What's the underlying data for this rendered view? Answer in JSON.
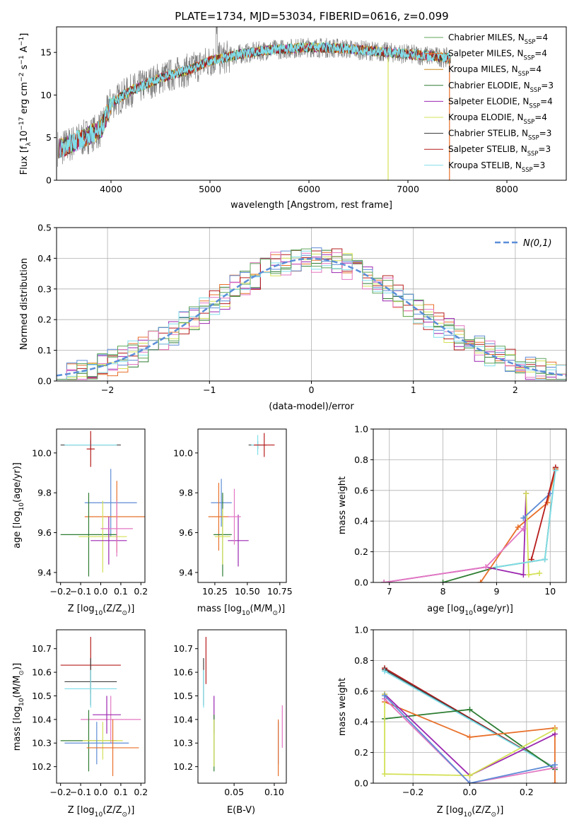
{
  "chart_data": [
    {
      "type": "line",
      "title": "PLATE=1734, MJD=53034, FIBERID=0616, z=0.099",
      "xlabel": "wavelength [Angstrom, rest frame]",
      "ylabel": "Flux [f_λ 10^-17 erg cm^-2 s^-1 A^-1]",
      "xlim": [
        3450,
        8600
      ],
      "ylim": [
        0,
        18
      ],
      "xticks": [
        4000,
        5000,
        6000,
        7000,
        8000
      ],
      "yticks": [
        0,
        5,
        10,
        15
      ],
      "continuum": {
        "x": [
          3500,
          3700,
          3900,
          4000,
          4200,
          4500,
          4800,
          5000,
          5300,
          5600,
          6000,
          6300,
          6600,
          7000,
          7300,
          7430
        ],
        "y": [
          3.8,
          4.8,
          6.0,
          9.0,
          10.5,
          12.0,
          13.0,
          14.0,
          14.8,
          15.3,
          15.6,
          15.5,
          15.2,
          14.8,
          14.5,
          14.3
        ]
      },
      "series": [
        {
          "name": "Chabrier MILES, N_SSP=4",
          "color": "#5fa55a"
        },
        {
          "name": "Salpeter MILES, N_SSP=4",
          "color": "#e8702a"
        },
        {
          "name": "Kroupa MILES, N_SSP=4",
          "color": "#c98a1a"
        },
        {
          "name": "Chabrier ELODIE, N_SSP=3",
          "color": "#2e7d32"
        },
        {
          "name": "Salpeter ELODIE, N_SSP=4",
          "color": "#9c27b0"
        },
        {
          "name": "Kroupa ELODIE, N_SSP=4",
          "color": "#d4e157"
        },
        {
          "name": "Chabrier STELIB, N_SSP=3",
          "color": "#333333"
        },
        {
          "name": "Salpeter STELIB, N_SSP=3",
          "color": "#b71c1c"
        },
        {
          "name": "Kroupa STELIB, N_SSP=3",
          "color": "#80deea"
        }
      ],
      "observed_color": "#808080"
    },
    {
      "type": "line",
      "xlabel": "(data-model)/error",
      "ylabel": "Normed distribution",
      "xlim": [
        -2.5,
        2.5
      ],
      "ylim": [
        0,
        0.5
      ],
      "xticks": [
        -2,
        -1,
        0,
        1,
        2
      ],
      "yticks": [
        0.0,
        0.1,
        0.2,
        0.3,
        0.4,
        0.5
      ],
      "grid": true,
      "legend": {
        "label": "N(0,1)",
        "placement": "top-right"
      },
      "hist_colors": [
        "#2e7d32",
        "#e8702a",
        "#9c27b0",
        "#d4e157",
        "#b71c1c",
        "#5e8cd6",
        "#e377c2",
        "#80deea",
        "#5fa55a"
      ],
      "gauss_color": "#5b8ed8"
    },
    {
      "type": "scatter",
      "xlabel": "Z [log10(Z/Z⊙)]",
      "ylabel": "age  [log10(age/yr)]",
      "xlim": [
        -0.22,
        0.22
      ],
      "ylim": [
        9.35,
        10.12
      ],
      "xticks": [
        -0.2,
        -0.1,
        0.0,
        0.1,
        0.2
      ],
      "yticks": [
        9.4,
        9.6,
        9.8,
        10.0
      ],
      "points": [
        {
          "x": -0.05,
          "xerr": 0.15,
          "y": 10.04,
          "yerr": 0.02,
          "color": "#444444"
        },
        {
          "x": -0.05,
          "xerr": 0.13,
          "y": 10.04,
          "yerr": 0.03,
          "color": "#80deea"
        },
        {
          "x": -0.05,
          "xerr": 0.02,
          "y": 10.02,
          "yerr": 0.09,
          "color": "#b71c1c"
        },
        {
          "x": 0.05,
          "xerr": 0.13,
          "y": 9.75,
          "yerr": 0.17,
          "color": "#5e8cd6"
        },
        {
          "x": 0.08,
          "xerr": 0.16,
          "y": 9.68,
          "yerr": 0.18,
          "color": "#e8702a"
        },
        {
          "x": -0.06,
          "xerr": 0.14,
          "y": 9.59,
          "yerr": 0.21,
          "color": "#2e7d32"
        },
        {
          "x": 0.01,
          "xerr": 0.12,
          "y": 9.58,
          "yerr": 0.18,
          "color": "#d4e157"
        },
        {
          "x": 0.04,
          "xerr": 0.09,
          "y": 9.56,
          "yerr": 0.12,
          "color": "#9c27b0"
        },
        {
          "x": 0.08,
          "xerr": 0.08,
          "y": 9.62,
          "yerr": 0.14,
          "color": "#e377c2"
        }
      ]
    },
    {
      "type": "scatter",
      "xlabel": "mass [log10(M/M⊙)]",
      "xlim": [
        10.12,
        10.8
      ],
      "ylim": [
        9.35,
        10.12
      ],
      "xticks": [
        10.25,
        10.5,
        10.75
      ],
      "yticks": [
        9.4,
        9.6,
        9.8,
        10.0
      ],
      "points": [
        {
          "x": 10.58,
          "xerr": 0.07,
          "y": 10.04,
          "yerr": 0.02,
          "color": "#444444"
        },
        {
          "x": 10.58,
          "xerr": 0.05,
          "y": 10.04,
          "yerr": 0.05,
          "color": "#80deea"
        },
        {
          "x": 10.63,
          "xerr": 0.08,
          "y": 10.04,
          "yerr": 0.06,
          "color": "#b71c1c"
        },
        {
          "x": 10.3,
          "xerr": 0.08,
          "y": 9.75,
          "yerr": 0.12,
          "color": "#5e8cd6"
        },
        {
          "x": 10.28,
          "xerr": 0.08,
          "y": 9.68,
          "yerr": 0.17,
          "color": "#e8702a"
        },
        {
          "x": 10.31,
          "xerr": 0.07,
          "y": 9.59,
          "yerr": 0.21,
          "color": "#2e7d32"
        },
        {
          "x": 10.31,
          "xerr": 0.06,
          "y": 9.58,
          "yerr": 0.14,
          "color": "#d4e157"
        },
        {
          "x": 10.43,
          "xerr": 0.08,
          "y": 9.56,
          "yerr": 0.13,
          "color": "#9c27b0"
        },
        {
          "x": 10.4,
          "xerr": 0.05,
          "y": 9.68,
          "yerr": 0.14,
          "color": "#e377c2"
        }
      ]
    },
    {
      "type": "line",
      "xlabel": "age  [log10(age/yr)]",
      "ylabel": "mass weight",
      "xlim": [
        6.7,
        10.3
      ],
      "ylim": [
        0,
        1.0
      ],
      "xticks": [
        7,
        8,
        9,
        10
      ],
      "yticks": [
        0.0,
        0.2,
        0.4,
        0.6,
        0.8,
        1.0
      ],
      "grid": true,
      "series": [
        {
          "color": "#2e7d32",
          "x": [
            8.0,
            9.0,
            9.9,
            10.1
          ],
          "y": [
            0.0,
            0.1,
            0.15,
            0.74
          ]
        },
        {
          "color": "#e8702a",
          "x": [
            8.7,
            9.4,
            9.95,
            10.1
          ],
          "y": [
            0.0,
            0.36,
            0.52,
            0.74
          ]
        },
        {
          "color": "#9c27b0",
          "x": [
            6.9,
            8.8,
            9.5,
            9.55
          ],
          "y": [
            0.0,
            0.1,
            0.05,
            0.58
          ]
        },
        {
          "color": "#d4e157",
          "x": [
            9.55,
            9.6,
            9.8
          ],
          "y": [
            0.58,
            0.05,
            0.06
          ]
        },
        {
          "color": "#5e8cd6",
          "x": [
            9.5,
            10.0
          ],
          "y": [
            0.42,
            0.58
          ]
        },
        {
          "color": "#b71c1c",
          "x": [
            9.65,
            10.1
          ],
          "y": [
            0.15,
            0.75
          ]
        },
        {
          "color": "#80deea",
          "x": [
            9.0,
            9.9,
            10.1
          ],
          "y": [
            0.1,
            0.15,
            0.73
          ]
        },
        {
          "color": "#e377c2",
          "x": [
            6.9,
            8.8,
            9.5
          ],
          "y": [
            0.0,
            0.1,
            0.35
          ]
        }
      ]
    },
    {
      "type": "scatter",
      "xlabel": "Z [log10(Z/Z⊙)]",
      "ylabel": "mass [log10(M/M⊙)]",
      "xlim": [
        -0.22,
        0.22
      ],
      "ylim": [
        10.13,
        10.78
      ],
      "xticks": [
        -0.2,
        -0.1,
        0.0,
        0.1,
        0.2
      ],
      "yticks": [
        10.2,
        10.3,
        10.4,
        10.5,
        10.6,
        10.7
      ],
      "points": [
        {
          "x": -0.05,
          "xerr": 0.15,
          "y": 10.63,
          "yerr": 0.12,
          "color": "#b71c1c"
        },
        {
          "x": -0.05,
          "xerr": 0.13,
          "y": 10.56,
          "yerr": 0.1,
          "color": "#444444"
        },
        {
          "x": -0.05,
          "xerr": 0.13,
          "y": 10.53,
          "yerr": 0.08,
          "color": "#80deea"
        },
        {
          "x": 0.05,
          "xerr": 0.15,
          "y": 10.4,
          "yerr": 0.1,
          "color": "#e377c2"
        },
        {
          "x": 0.03,
          "xerr": 0.07,
          "y": 10.42,
          "yerr": 0.08,
          "color": "#9c27b0"
        },
        {
          "x": -0.06,
          "xerr": 0.14,
          "y": 10.31,
          "yerr": 0.13,
          "color": "#2e7d32"
        },
        {
          "x": 0.01,
          "xerr": 0.1,
          "y": 10.31,
          "yerr": 0.08,
          "color": "#d4e157"
        },
        {
          "x": -0.02,
          "xerr": 0.16,
          "y": 10.3,
          "yerr": 0.09,
          "color": "#5e8cd6"
        },
        {
          "x": 0.06,
          "xerr": 0.13,
          "y": 10.28,
          "yerr": 0.12,
          "color": "#e8702a"
        }
      ]
    },
    {
      "type": "scatter",
      "xlabel": "E(B-V)",
      "xlim": [
        0.005,
        0.115
      ],
      "ylim": [
        10.13,
        10.78
      ],
      "xticks": [
        0.05,
        0.1
      ],
      "yticks": [
        10.2,
        10.3,
        10.4,
        10.5,
        10.6,
        10.7
      ],
      "points": [
        {
          "x": 0.012,
          "y": 10.56,
          "yerr": 0.1,
          "color": "#444444"
        },
        {
          "x": 0.012,
          "y": 10.53,
          "yerr": 0.08,
          "color": "#80deea"
        },
        {
          "x": 0.015,
          "y": 10.65,
          "yerr": 0.1,
          "color": "#b71c1c"
        },
        {
          "x": 0.025,
          "y": 10.42,
          "yerr": 0.08,
          "color": "#9c27b0"
        },
        {
          "x": 0.025,
          "y": 10.3,
          "yerr": 0.12,
          "color": "#2e7d32"
        },
        {
          "x": 0.025,
          "y": 10.3,
          "yerr": 0.1,
          "color": "#d4e157"
        },
        {
          "x": 0.105,
          "y": 10.3,
          "yerr": 0.09,
          "color": "#5e8cd6"
        },
        {
          "x": 0.105,
          "y": 10.28,
          "yerr": 0.12,
          "color": "#e8702a"
        },
        {
          "x": 0.11,
          "y": 10.37,
          "yerr": 0.09,
          "color": "#e377c2"
        }
      ]
    },
    {
      "type": "line",
      "xlabel": "Z [log10(Z/Z⊙)]",
      "ylabel": "mass weight",
      "xlim": [
        -0.34,
        0.34
      ],
      "ylim": [
        0,
        1.0
      ],
      "xticks": [
        -0.2,
        0.0,
        0.2
      ],
      "yticks": [
        0.0,
        0.2,
        0.4,
        0.6,
        0.8,
        1.0
      ],
      "grid": true,
      "series": [
        {
          "color": "#b71c1c",
          "x": [
            -0.3,
            0.3
          ],
          "y": [
            0.75,
            0.1
          ]
        },
        {
          "color": "#444444",
          "x": [
            -0.3,
            0.3
          ],
          "y": [
            0.74,
            0.1
          ]
        },
        {
          "color": "#80deea",
          "x": [
            -0.3,
            0.3
          ],
          "y": [
            0.73,
            0.1
          ]
        },
        {
          "color": "#2e7d32",
          "x": [
            -0.3,
            0.0,
            0.3
          ],
          "y": [
            0.42,
            0.48,
            0.09
          ]
        },
        {
          "color": "#e8702a",
          "x": [
            -0.3,
            0.0,
            0.3,
            0.3
          ],
          "y": [
            0.53,
            0.3,
            0.36,
            0.0
          ]
        },
        {
          "color": "#9c27b0",
          "x": [
            -0.3,
            0.0,
            0.3
          ],
          "y": [
            0.58,
            0.05,
            0.32
          ]
        },
        {
          "color": "#d4e157",
          "x": [
            -0.3,
            -0.3,
            0.0,
            0.3
          ],
          "y": [
            0.58,
            0.06,
            0.05,
            0.35
          ]
        },
        {
          "color": "#e377c2",
          "x": [
            -0.3,
            0.0,
            0.3
          ],
          "y": [
            0.55,
            0.0,
            0.1
          ]
        },
        {
          "color": "#5e8cd6",
          "x": [
            -0.3,
            0.0,
            0.3
          ],
          "y": [
            0.57,
            0.0,
            0.12
          ]
        }
      ]
    }
  ]
}
